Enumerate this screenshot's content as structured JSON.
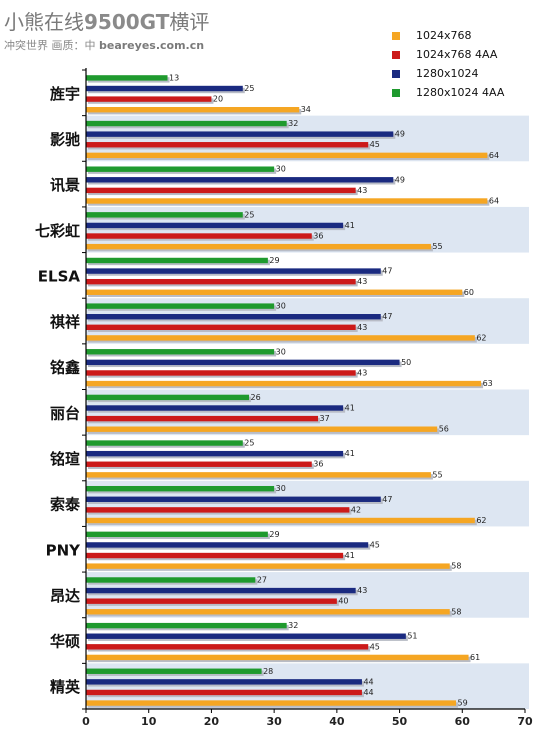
{
  "header": {
    "title_prefix": "小熊在线",
    "title_bold": "9500GT",
    "title_suffix": "横评",
    "subtitle_prefix": "冲突世界  画质：中",
    "subtitle_site": "beareyes.com.cn"
  },
  "chart_data": {
    "type": "bar",
    "orientation": "horizontal",
    "categories": [
      "旌宇",
      "影驰",
      "讯景",
      "七彩虹",
      "ELSA",
      "祺祥",
      "铭鑫",
      "丽台",
      "铭瑄",
      "索泰",
      "PNY",
      "昂达",
      "华硕",
      "精英"
    ],
    "series": [
      {
        "name": "1024x768",
        "color": "#f5a623",
        "values": [
          34,
          64,
          64,
          55,
          60,
          62,
          63,
          56,
          55,
          62,
          58,
          58,
          61,
          59
        ]
      },
      {
        "name": "1024x768 4AA",
        "color": "#cc1a1a",
        "values": [
          20,
          45,
          43,
          36,
          43,
          43,
          43,
          37,
          36,
          42,
          41,
          40,
          45,
          44
        ]
      },
      {
        "name": "1280x1024",
        "color": "#1a2a80",
        "values": [
          25,
          49,
          49,
          41,
          47,
          47,
          50,
          41,
          41,
          47,
          45,
          43,
          51,
          44
        ]
      },
      {
        "name": "1280x1024 4AA",
        "color": "#1f9a2e",
        "values": [
          13,
          32,
          30,
          25,
          29,
          30,
          30,
          26,
          25,
          30,
          29,
          27,
          32,
          28
        ]
      }
    ],
    "xlim": [
      0,
      70
    ],
    "xticks": [
      0,
      10,
      20,
      30,
      40,
      50,
      60,
      70
    ],
    "legend_position": "top-right",
    "band_color": "#dde6f2"
  }
}
